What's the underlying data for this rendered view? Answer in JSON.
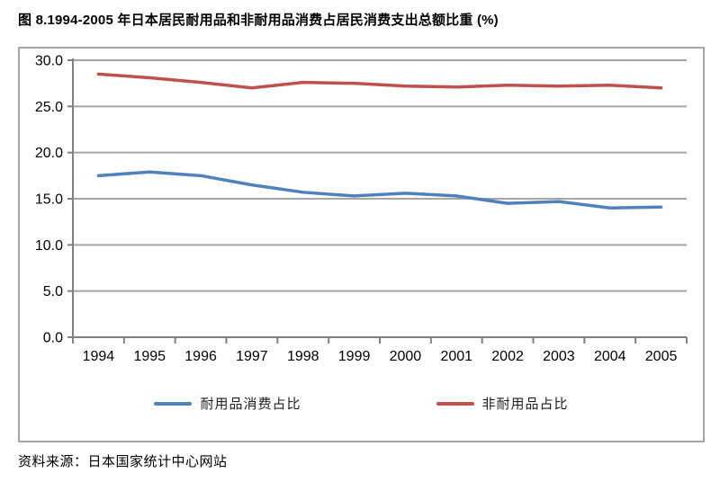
{
  "page": {
    "title": "图 8.1994-2005 年日本居民耐用品和非耐用品消费占居民消费支出总额比重 (%)",
    "source": "资料来源：日本国家统计中心网站"
  },
  "chart_data": {
    "type": "line",
    "categories": [
      "1994",
      "1995",
      "1996",
      "1997",
      "1998",
      "1999",
      "2000",
      "2001",
      "2002",
      "2003",
      "2004",
      "2005"
    ],
    "series": [
      {
        "name": "耐用品消费占比",
        "color": "#4f81bd",
        "values": [
          17.5,
          17.9,
          17.5,
          16.5,
          15.7,
          15.3,
          15.6,
          15.3,
          14.5,
          14.7,
          14.0,
          14.1
        ]
      },
      {
        "name": "非耐用品占比",
        "color": "#c0504d",
        "values": [
          28.5,
          28.1,
          27.6,
          27.0,
          27.6,
          27.5,
          27.2,
          27.1,
          27.3,
          27.2,
          27.3,
          27.0
        ]
      }
    ],
    "ylim": [
      0,
      30
    ],
    "ytick_step": 5,
    "ytick_labels": [
      "0.0",
      "5.0",
      "10.0",
      "15.0",
      "20.0",
      "25.0",
      "30.0"
    ],
    "grid": true,
    "legend_position": "bottom",
    "grid_color": "#a6a6a6",
    "axis_color": "#808080",
    "tick_label_color": "#000000",
    "line_width": 3.5
  }
}
